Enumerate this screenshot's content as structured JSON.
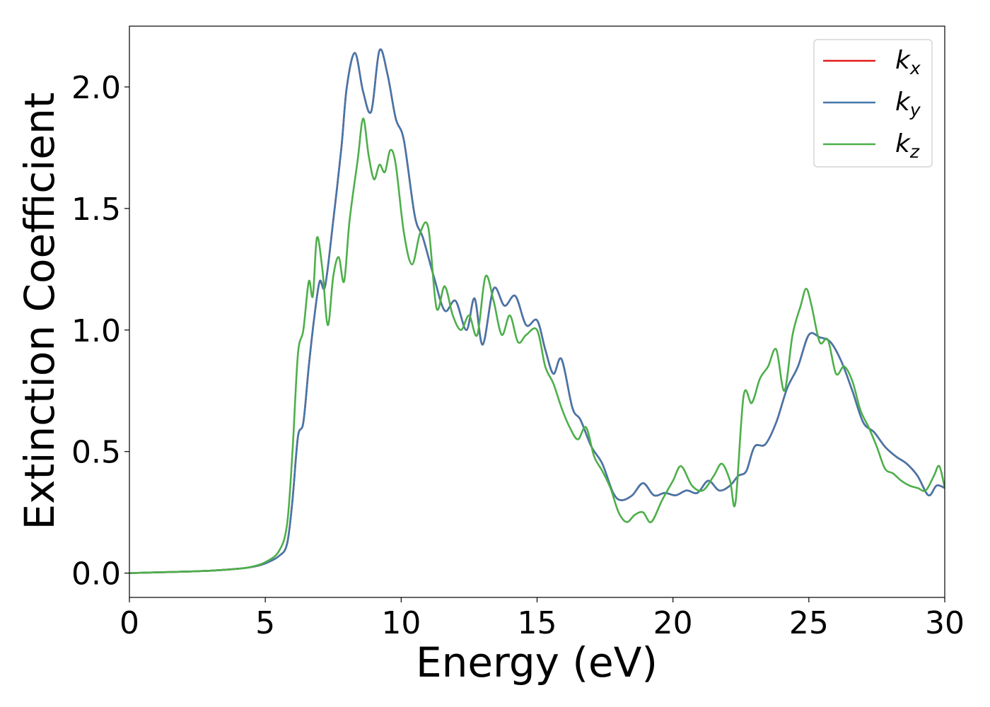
{
  "chart_data": {
    "type": "line",
    "xlabel": "Energy (eV)",
    "ylabel": "Extinction Coefficient",
    "xlim": [
      0,
      30
    ],
    "ylim": [
      -0.1,
      2.25
    ],
    "xticks": [
      0,
      5,
      10,
      15,
      20,
      25,
      30
    ],
    "yticks": [
      0.0,
      0.5,
      1.0,
      1.5,
      2.0
    ],
    "xtick_labels": [
      "0",
      "5",
      "10",
      "15",
      "20",
      "25",
      "30"
    ],
    "ytick_labels": [
      "0.0",
      "0.5",
      "1.0",
      "1.5",
      "2.0"
    ],
    "grid": false,
    "legend_position": "top-right",
    "series": [
      {
        "name": "k",
        "subscript": "x",
        "color": "#e41a1c",
        "x": [
          0,
          1,
          2,
          3,
          4,
          4.5,
          5,
          5.5,
          5.8,
          6,
          6.2,
          6.4,
          6.6,
          6.8,
          7,
          7.2,
          7.5,
          7.8,
          8,
          8.3,
          8.6,
          8.9,
          9.2,
          9.5,
          9.8,
          10.1,
          10.5,
          10.8,
          11.2,
          11.6,
          12,
          12.4,
          12.7,
          13,
          13.4,
          13.8,
          14.2,
          14.6,
          15,
          15.3,
          15.6,
          15.9,
          16.3,
          16.6,
          17,
          17.4,
          17.8,
          18.1,
          18.5,
          18.9,
          19.3,
          19.7,
          20.1,
          20.5,
          20.9,
          21.3,
          21.7,
          22.1,
          22.4,
          22.7,
          23,
          23.4,
          23.8,
          24.2,
          24.6,
          25,
          25.4,
          25.8,
          26.2,
          26.6,
          27,
          27.4,
          27.8,
          28.2,
          28.6,
          29,
          29.4,
          29.7,
          30
        ],
        "y": [
          0.0,
          0.003,
          0.006,
          0.01,
          0.018,
          0.025,
          0.04,
          0.07,
          0.12,
          0.3,
          0.56,
          0.62,
          0.85,
          1.05,
          1.2,
          1.18,
          1.45,
          1.75,
          2.0,
          2.14,
          1.98,
          1.9,
          2.15,
          2.05,
          1.87,
          1.78,
          1.47,
          1.38,
          1.22,
          1.08,
          1.12,
          1.0,
          1.13,
          0.94,
          1.17,
          1.1,
          1.14,
          1.02,
          1.04,
          0.92,
          0.82,
          0.88,
          0.68,
          0.63,
          0.52,
          0.45,
          0.33,
          0.3,
          0.32,
          0.37,
          0.32,
          0.33,
          0.32,
          0.34,
          0.33,
          0.38,
          0.34,
          0.36,
          0.4,
          0.42,
          0.52,
          0.53,
          0.62,
          0.76,
          0.85,
          0.98,
          0.97,
          0.95,
          0.87,
          0.75,
          0.62,
          0.58,
          0.52,
          0.48,
          0.45,
          0.4,
          0.32,
          0.36,
          0.35
        ]
      },
      {
        "name": "k",
        "subscript": "y",
        "color": "#4477aa",
        "x": [
          0,
          1,
          2,
          3,
          4,
          4.5,
          5,
          5.5,
          5.8,
          6,
          6.2,
          6.4,
          6.6,
          6.8,
          7,
          7.2,
          7.5,
          7.8,
          8,
          8.3,
          8.6,
          8.9,
          9.2,
          9.5,
          9.8,
          10.1,
          10.5,
          10.8,
          11.2,
          11.6,
          12,
          12.4,
          12.7,
          13,
          13.4,
          13.8,
          14.2,
          14.6,
          15,
          15.3,
          15.6,
          15.9,
          16.3,
          16.6,
          17,
          17.4,
          17.8,
          18.1,
          18.5,
          18.9,
          19.3,
          19.7,
          20.1,
          20.5,
          20.9,
          21.3,
          21.7,
          22.1,
          22.4,
          22.7,
          23,
          23.4,
          23.8,
          24.2,
          24.6,
          25,
          25.4,
          25.8,
          26.2,
          26.6,
          27,
          27.4,
          27.8,
          28.2,
          28.6,
          29,
          29.4,
          29.7,
          30
        ],
        "y": [
          0.0,
          0.003,
          0.006,
          0.01,
          0.018,
          0.025,
          0.04,
          0.07,
          0.12,
          0.3,
          0.56,
          0.62,
          0.85,
          1.05,
          1.2,
          1.18,
          1.45,
          1.75,
          2.0,
          2.14,
          1.98,
          1.9,
          2.15,
          2.05,
          1.87,
          1.78,
          1.47,
          1.38,
          1.22,
          1.08,
          1.12,
          1.0,
          1.13,
          0.94,
          1.17,
          1.1,
          1.14,
          1.02,
          1.04,
          0.92,
          0.82,
          0.88,
          0.68,
          0.63,
          0.52,
          0.45,
          0.33,
          0.3,
          0.32,
          0.37,
          0.32,
          0.33,
          0.32,
          0.34,
          0.33,
          0.38,
          0.34,
          0.36,
          0.4,
          0.42,
          0.52,
          0.53,
          0.62,
          0.76,
          0.85,
          0.98,
          0.97,
          0.95,
          0.87,
          0.75,
          0.62,
          0.58,
          0.52,
          0.48,
          0.45,
          0.4,
          0.32,
          0.36,
          0.35
        ]
      },
      {
        "name": "k",
        "subscript": "z",
        "color": "#4daf4a",
        "x": [
          0,
          1,
          2,
          3,
          4,
          4.5,
          5,
          5.5,
          5.8,
          6,
          6.2,
          6.4,
          6.6,
          6.75,
          6.9,
          7.1,
          7.3,
          7.5,
          7.7,
          7.9,
          8.1,
          8.4,
          8.6,
          8.8,
          9,
          9.2,
          9.4,
          9.6,
          9.8,
          10.1,
          10.4,
          10.7,
          11,
          11.3,
          11.6,
          11.9,
          12.2,
          12.5,
          12.8,
          13.1,
          13.4,
          13.7,
          14,
          14.3,
          14.6,
          15,
          15.3,
          15.6,
          15.9,
          16.2,
          16.5,
          16.8,
          17.1,
          17.4,
          17.7,
          18,
          18.3,
          18.6,
          18.9,
          19.2,
          19.6,
          20,
          20.3,
          20.7,
          21.1,
          21.5,
          21.8,
          22.1,
          22.3,
          22.6,
          22.9,
          23.2,
          23.5,
          23.8,
          24.1,
          24.4,
          24.7,
          24.9,
          25.1,
          25.4,
          25.7,
          26,
          26.3,
          26.6,
          26.9,
          27.2,
          27.5,
          27.8,
          28.1,
          28.4,
          28.7,
          29,
          29.3,
          29.6,
          29.8,
          30
        ],
        "y": [
          0.0,
          0.003,
          0.006,
          0.01,
          0.018,
          0.026,
          0.045,
          0.09,
          0.2,
          0.5,
          0.9,
          1.0,
          1.2,
          1.14,
          1.38,
          1.25,
          1.02,
          1.22,
          1.3,
          1.2,
          1.45,
          1.7,
          1.87,
          1.72,
          1.62,
          1.68,
          1.65,
          1.74,
          1.68,
          1.4,
          1.27,
          1.4,
          1.42,
          1.09,
          1.18,
          1.06,
          1.0,
          1.06,
          0.98,
          1.22,
          1.12,
          0.98,
          1.06,
          0.95,
          0.98,
          1.0,
          0.85,
          0.78,
          0.68,
          0.6,
          0.55,
          0.6,
          0.48,
          0.42,
          0.35,
          0.25,
          0.21,
          0.24,
          0.25,
          0.21,
          0.3,
          0.38,
          0.44,
          0.36,
          0.34,
          0.4,
          0.45,
          0.38,
          0.29,
          0.73,
          0.7,
          0.8,
          0.85,
          0.92,
          0.75,
          0.98,
          1.1,
          1.17,
          1.1,
          0.95,
          0.96,
          0.82,
          0.85,
          0.79,
          0.67,
          0.6,
          0.52,
          0.43,
          0.41,
          0.38,
          0.36,
          0.35,
          0.34,
          0.4,
          0.44,
          0.35
        ]
      }
    ]
  }
}
